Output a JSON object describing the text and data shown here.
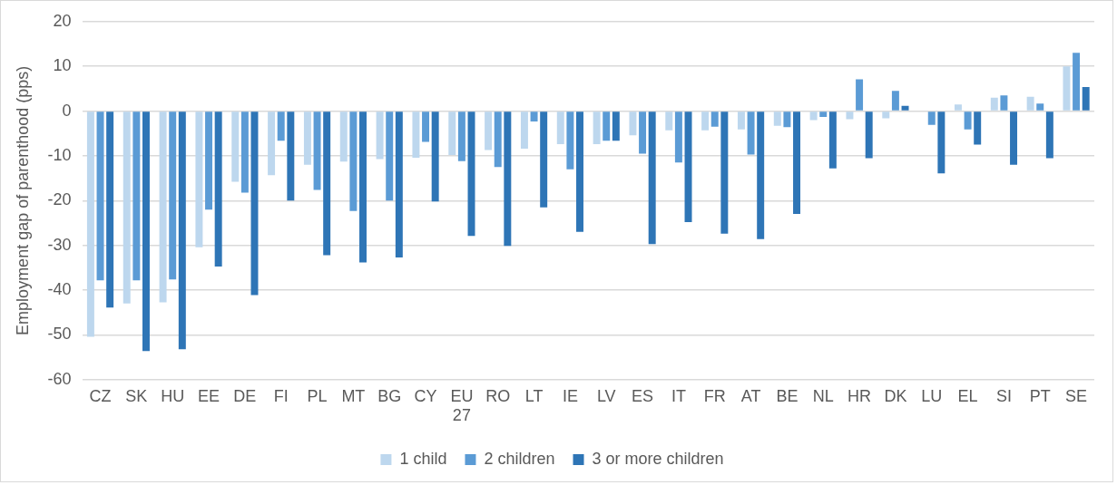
{
  "chart_data": {
    "type": "bar",
    "ylabel": "Employment gap of parenthood (pps)",
    "categories": [
      "CZ",
      "SK",
      "HU",
      "EE",
      "DE",
      "FI",
      "PL",
      "MT",
      "BG",
      "CY",
      "EU 27",
      "RO",
      "LT",
      "IE",
      "LV",
      "ES",
      "IT",
      "FR",
      "AT",
      "BE",
      "NL",
      "HR",
      "DK",
      "LU",
      "EL",
      "SI",
      "PT",
      "SE"
    ],
    "series": [
      {
        "name": "1 child",
        "color": "#bdd7ee",
        "values": [
          -50.4,
          -43,
          -42.7,
          -30.4,
          -15.8,
          -14.3,
          -12,
          -11.3,
          -10.7,
          -10.4,
          -9.8,
          -8.7,
          -8.4,
          -7.4,
          -7.4,
          -5.4,
          -4.3,
          -4.3,
          -4.1,
          -3.3,
          -2,
          -1.8,
          -1.6,
          0,
          1.5,
          3,
          3.2,
          10
        ]
      },
      {
        "name": "2 children",
        "color": "#5b9bd5",
        "values": [
          -37.8,
          -37.8,
          -37.6,
          -22,
          -18.2,
          -6.6,
          -17.6,
          -22.3,
          -20,
          -6.9,
          -11.2,
          -12.5,
          -2.3,
          -13,
          -6.6,
          -9.5,
          -11.5,
          -3.5,
          -9.7,
          -3.6,
          -1.3,
          7.1,
          4.5,
          -3.1,
          -4.1,
          3.5,
          1.7,
          13
        ]
      },
      {
        "name": "3 or more children",
        "color": "#2e75b6",
        "values": [
          -43.9,
          -53.6,
          -53.2,
          -34.7,
          -41.1,
          -20,
          -32.2,
          -33.8,
          -32.7,
          -20.2,
          -27.9,
          -30.1,
          -21.5,
          -27,
          -6.6,
          -29.7,
          -24.8,
          -27.4,
          -28.6,
          -23,
          -12.8,
          -10.5,
          1.2,
          -13.9,
          -7.5,
          -12,
          -10.5,
          5.4
        ]
      }
    ],
    "ylim": [
      -60,
      20
    ],
    "yticks": [
      -60,
      -50,
      -40,
      -30,
      -20,
      -10,
      0,
      10,
      20
    ],
    "grid": "y",
    "legend": "bottom"
  }
}
